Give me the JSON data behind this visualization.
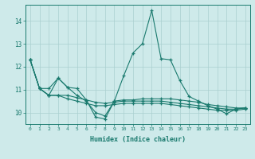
{
  "x": [
    0,
    1,
    2,
    3,
    4,
    5,
    6,
    7,
    8,
    9,
    10,
    11,
    12,
    13,
    14,
    15,
    16,
    17,
    18,
    19,
    20,
    21,
    22,
    23
  ],
  "line_spike": [
    12.3,
    11.05,
    11.05,
    11.5,
    11.1,
    11.05,
    10.55,
    9.8,
    9.72,
    10.5,
    11.6,
    12.6,
    13.0,
    14.45,
    12.35,
    12.3,
    11.4,
    10.7,
    10.5,
    10.3,
    10.15,
    9.95,
    10.15,
    10.2
  ],
  "line2": [
    12.3,
    11.05,
    10.75,
    11.5,
    11.1,
    10.75,
    10.5,
    10.0,
    9.85,
    10.5,
    10.55,
    10.55,
    10.6,
    10.6,
    10.6,
    10.6,
    10.55,
    10.5,
    10.45,
    10.35,
    10.3,
    10.25,
    10.2,
    10.2
  ],
  "line3": [
    12.3,
    11.05,
    10.75,
    10.75,
    10.75,
    10.65,
    10.55,
    10.45,
    10.4,
    10.45,
    10.5,
    10.5,
    10.5,
    10.5,
    10.5,
    10.45,
    10.4,
    10.35,
    10.3,
    10.25,
    10.2,
    10.15,
    10.15,
    10.2
  ],
  "line4": [
    12.3,
    11.05,
    10.75,
    10.75,
    10.6,
    10.5,
    10.4,
    10.3,
    10.3,
    10.35,
    10.4,
    10.4,
    10.4,
    10.4,
    10.4,
    10.35,
    10.3,
    10.25,
    10.2,
    10.15,
    10.1,
    10.1,
    10.1,
    10.15
  ],
  "color": "#1a7a6e",
  "bg_color": "#ceeaea",
  "grid_color": "#aacfcf",
  "xlabel": "Humidex (Indice chaleur)",
  "ylabel_ticks": [
    10,
    11,
    12,
    13,
    14
  ],
  "xlim": [
    -0.5,
    23.5
  ],
  "ylim": [
    9.5,
    14.7
  ],
  "figsize": [
    3.2,
    2.0
  ],
  "dpi": 100
}
